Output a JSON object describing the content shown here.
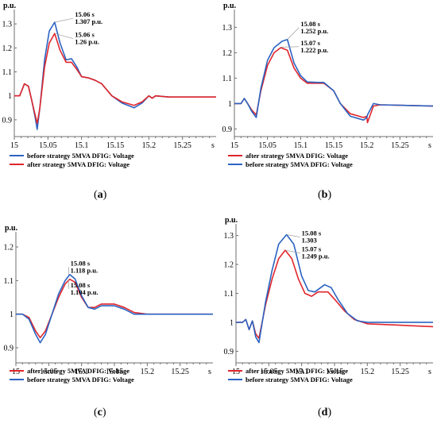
{
  "colors": {
    "blue": "#2b63c2",
    "red": "#e0262c",
    "axis": "#6f6f6f",
    "grid": "#cfcfcf"
  },
  "chart_data": [
    {
      "id": "a",
      "type": "line",
      "caption": "(a)",
      "caption_letter": "a",
      "ylabel": "p.u.",
      "xlabel": "s",
      "xlim": [
        15.0,
        15.3
      ],
      "ylim": [
        0.83,
        1.36
      ],
      "xticks": [
        15,
        15.05,
        15.1,
        15.15,
        15.2,
        15.25
      ],
      "xtick_labels": [
        "15",
        "15.05",
        "15.1",
        "15.15",
        "15.2",
        "15.25"
      ],
      "yticks": [
        0.9,
        1,
        1.1,
        1.2,
        1.3
      ],
      "ytick_labels": [
        "0.9",
        "1",
        "1.1",
        "1.2",
        "1.3"
      ],
      "series": [
        {
          "name": "before strategy 5MVA DFIG: Voltage",
          "color": "#2b63c2",
          "points": [
            [
              15.0,
              1.0
            ],
            [
              15.008,
              1.0
            ],
            [
              15.015,
              1.05
            ],
            [
              15.021,
              1.04
            ],
            [
              15.026,
              0.98
            ],
            [
              15.031,
              0.91
            ],
            [
              15.034,
              0.86
            ],
            [
              15.038,
              0.95
            ],
            [
              15.045,
              1.15
            ],
            [
              15.052,
              1.27
            ],
            [
              15.06,
              1.307
            ],
            [
              15.068,
              1.22
            ],
            [
              15.077,
              1.15
            ],
            [
              15.085,
              1.155
            ],
            [
              15.093,
              1.12
            ],
            [
              15.1,
              1.08
            ],
            [
              15.11,
              1.075
            ],
            [
              15.12,
              1.065
            ],
            [
              15.13,
              1.05
            ],
            [
              15.145,
              1.0
            ],
            [
              15.16,
              0.97
            ],
            [
              15.178,
              0.95
            ],
            [
              15.19,
              0.97
            ],
            [
              15.2,
              1.0
            ],
            [
              15.205,
              0.99
            ],
            [
              15.21,
              1.0
            ],
            [
              15.23,
              0.995
            ],
            [
              15.3,
              0.995
            ]
          ]
        },
        {
          "name": "after strategy 5MVA DFIG: Voltage",
          "color": "#e0262c",
          "points": [
            [
              15.0,
              1.0
            ],
            [
              15.008,
              1.0
            ],
            [
              15.015,
              1.05
            ],
            [
              15.021,
              1.04
            ],
            [
              15.026,
              0.98
            ],
            [
              15.031,
              0.92
            ],
            [
              15.034,
              0.885
            ],
            [
              15.038,
              0.95
            ],
            [
              15.045,
              1.12
            ],
            [
              15.052,
              1.22
            ],
            [
              15.06,
              1.26
            ],
            [
              15.068,
              1.19
            ],
            [
              15.077,
              1.14
            ],
            [
              15.085,
              1.14
            ],
            [
              15.093,
              1.11
            ],
            [
              15.1,
              1.08
            ],
            [
              15.11,
              1.075
            ],
            [
              15.12,
              1.065
            ],
            [
              15.13,
              1.05
            ],
            [
              15.145,
              1.0
            ],
            [
              15.16,
              0.975
            ],
            [
              15.178,
              0.96
            ],
            [
              15.19,
              0.975
            ],
            [
              15.2,
              1.0
            ],
            [
              15.205,
              0.99
            ],
            [
              15.21,
              1.0
            ],
            [
              15.23,
              0.995
            ],
            [
              15.3,
              0.995
            ]
          ]
        }
      ],
      "annotations": [
        {
          "lines": [
            "15.06 s",
            "1.307 p.u."
          ],
          "x": 15.06,
          "y": 1.307,
          "tx": 15.09,
          "ty": 1.33
        },
        {
          "lines": [
            "15.06 s",
            "1.26 p.u."
          ],
          "x": 15.06,
          "y": 1.26,
          "tx": 15.09,
          "ty": 1.245
        }
      ],
      "legend": [
        {
          "label": "before strategy 5MVA DFIG: Voltage",
          "color": "#2b63c2"
        },
        {
          "label": "after strategy 5MVA DFIG: Voltage",
          "color": "#e0262c"
        }
      ]
    },
    {
      "id": "b",
      "type": "line",
      "caption": "(b)",
      "caption_letter": "b",
      "ylabel": "p.u.",
      "xlabel": "s",
      "xlim": [
        15.0,
        15.3
      ],
      "ylim": [
        0.87,
        1.37
      ],
      "xticks": [
        15,
        15.05,
        15.1,
        15.15,
        15.2,
        15.25
      ],
      "xtick_labels": [
        "15",
        "15.05",
        "15.1",
        "15.15",
        "15.2",
        "15.25"
      ],
      "yticks": [
        0.9,
        1,
        1.1,
        1.2,
        1.3
      ],
      "ytick_labels": [
        "0.9",
        "1",
        "1.1",
        "1.2",
        "1.3"
      ],
      "series": [
        {
          "name": "after strategy 5MVA DFIG: Voltage",
          "color": "#e0262c",
          "points": [
            [
              15.0,
              1.0
            ],
            [
              15.01,
              1.0
            ],
            [
              15.015,
              1.02
            ],
            [
              15.02,
              1.0
            ],
            [
              15.026,
              0.975
            ],
            [
              15.033,
              0.955
            ],
            [
              15.04,
              1.05
            ],
            [
              15.05,
              1.15
            ],
            [
              15.06,
              1.2
            ],
            [
              15.07,
              1.22
            ],
            [
              15.08,
              1.21
            ],
            [
              15.09,
              1.14
            ],
            [
              15.1,
              1.1
            ],
            [
              15.11,
              1.08
            ],
            [
              15.125,
              1.08
            ],
            [
              15.135,
              1.08
            ],
            [
              15.15,
              1.05
            ],
            [
              15.16,
              1.0
            ],
            [
              15.175,
              0.96
            ],
            [
              15.195,
              0.945
            ],
            [
              15.2,
              0.95
            ],
            [
              15.201,
              0.925
            ],
            [
              15.21,
              0.99
            ],
            [
              15.22,
              0.995
            ],
            [
              15.3,
              0.99
            ]
          ]
        },
        {
          "name": "before strategy 5MVA DFIG: Voltage",
          "color": "#2b63c2",
          "points": [
            [
              15.0,
              1.0
            ],
            [
              15.01,
              1.0
            ],
            [
              15.015,
              1.02
            ],
            [
              15.02,
              1.0
            ],
            [
              15.026,
              0.97
            ],
            [
              15.033,
              0.945
            ],
            [
              15.04,
              1.06
            ],
            [
              15.05,
              1.17
            ],
            [
              15.06,
              1.22
            ],
            [
              15.072,
              1.245
            ],
            [
              15.08,
              1.252
            ],
            [
              15.09,
              1.16
            ],
            [
              15.1,
              1.11
            ],
            [
              15.11,
              1.085
            ],
            [
              15.125,
              1.083
            ],
            [
              15.135,
              1.083
            ],
            [
              15.15,
              1.05
            ],
            [
              15.16,
              1.0
            ],
            [
              15.175,
              0.95
            ],
            [
              15.195,
              0.935
            ],
            [
              15.2,
              0.945
            ],
            [
              15.201,
              0.955
            ],
            [
              15.21,
              1.0
            ],
            [
              15.22,
              0.995
            ],
            [
              15.3,
              0.99
            ]
          ]
        }
      ],
      "annotations": [
        {
          "lines": [
            "15.08 s",
            "1.252 p.u."
          ],
          "x": 15.08,
          "y": 1.252,
          "tx": 15.1,
          "ty": 1.305
        },
        {
          "lines": [
            "15.07 s",
            "1.222 p.u."
          ],
          "x": 15.07,
          "y": 1.222,
          "tx": 15.1,
          "ty": 1.23
        }
      ],
      "legend": [
        {
          "label": "after strategy 5MVA DFIG: Voltage",
          "color": "#e0262c"
        },
        {
          "label": "before strategy 5MVA DFIG: Voltage",
          "color": "#2b63c2"
        }
      ]
    },
    {
      "id": "c",
      "type": "line",
      "caption": "(c)",
      "caption_letter": "c",
      "ylabel": "p.u.",
      "xlabel": "s",
      "xlim": [
        15.0,
        15.3
      ],
      "ylim": [
        0.855,
        1.245
      ],
      "xticks": [
        15,
        15.05,
        15.1,
        15.15,
        15.2,
        15.25
      ],
      "xtick_labels": [
        "15",
        "15.05",
        "15.1",
        "15.15",
        "15.2",
        "15.25"
      ],
      "yticks": [
        0.9,
        1,
        1.1,
        1.2
      ],
      "ytick_labels": [
        "0.9",
        "1",
        "1.1",
        "1.2"
      ],
      "series": [
        {
          "name": "after strategy 5MVA DFIG: Voltage",
          "color": "#e0262c",
          "points": [
            [
              15.0,
              1.0
            ],
            [
              15.01,
              1.0
            ],
            [
              15.02,
              0.99
            ],
            [
              15.03,
              0.95
            ],
            [
              15.037,
              0.93
            ],
            [
              15.045,
              0.95
            ],
            [
              15.055,
              1.0
            ],
            [
              15.065,
              1.05
            ],
            [
              15.075,
              1.09
            ],
            [
              15.082,
              1.104
            ],
            [
              15.09,
              1.095
            ],
            [
              15.1,
              1.05
            ],
            [
              15.11,
              1.02
            ],
            [
              15.12,
              1.02
            ],
            [
              15.13,
              1.03
            ],
            [
              15.15,
              1.03
            ],
            [
              15.165,
              1.02
            ],
            [
              15.18,
              1.005
            ],
            [
              15.2,
              1.0
            ],
            [
              15.3,
              1.0
            ]
          ]
        },
        {
          "name": "before strategy 5MVA DFIG: Voltage",
          "color": "#2b63c2",
          "points": [
            [
              15.0,
              1.0
            ],
            [
              15.01,
              1.0
            ],
            [
              15.02,
              0.985
            ],
            [
              15.03,
              0.94
            ],
            [
              15.037,
              0.915
            ],
            [
              15.045,
              0.94
            ],
            [
              15.055,
              1.0
            ],
            [
              15.065,
              1.06
            ],
            [
              15.075,
              1.1
            ],
            [
              15.082,
              1.118
            ],
            [
              15.09,
              1.105
            ],
            [
              15.1,
              1.055
            ],
            [
              15.11,
              1.02
            ],
            [
              15.12,
              1.015
            ],
            [
              15.13,
              1.025
            ],
            [
              15.15,
              1.025
            ],
            [
              15.165,
              1.015
            ],
            [
              15.18,
              1.0
            ],
            [
              15.2,
              1.0
            ],
            [
              15.3,
              1.0
            ]
          ]
        }
      ],
      "annotations": [
        {
          "lines": [
            "15.08 s",
            "1.118 p.u."
          ],
          "x": 15.08,
          "y": 1.118,
          "tx": 15.083,
          "ty": 1.145
        },
        {
          "lines": [
            "15.08 s",
            "1.104 p.u."
          ],
          "x": 15.08,
          "y": 1.104,
          "tx": 15.083,
          "ty": 1.08
        }
      ],
      "legend": [
        {
          "label": "after strategy 5MVA DFIG: Voltage",
          "color": "#e0262c"
        },
        {
          "label": "before strategy 5MVA DFIG: Voltage",
          "color": "#2b63c2"
        }
      ]
    },
    {
      "id": "d",
      "type": "line",
      "caption": "(d)",
      "caption_letter": "d",
      "ylabel": "p.u.",
      "xlabel": "s",
      "xlim": [
        15.0,
        15.3
      ],
      "ylim": [
        0.86,
        1.34
      ],
      "xticks": [
        15,
        15.05,
        15.1,
        15.15,
        15.2,
        15.25
      ],
      "xtick_labels": [
        "15",
        "15.05",
        "15.1",
        "15.15",
        "15.2",
        "15.25"
      ],
      "yticks": [
        0.9,
        1,
        1.1,
        1.2,
        1.3
      ],
      "ytick_labels": [
        "0.9",
        "1",
        "1.1",
        "1.2",
        "1.3"
      ],
      "series": [
        {
          "name": "after strategy 5MVA DFIG: Voltage",
          "color": "#e0262c",
          "points": [
            [
              15.0,
              1.0
            ],
            [
              15.01,
              1.0
            ],
            [
              15.015,
              1.01
            ],
            [
              15.02,
              0.975
            ],
            [
              15.025,
              1.005
            ],
            [
              15.03,
              0.96
            ],
            [
              15.035,
              0.945
            ],
            [
              15.045,
              1.06
            ],
            [
              15.055,
              1.15
            ],
            [
              15.065,
              1.22
            ],
            [
              15.075,
              1.249
            ],
            [
              15.085,
              1.22
            ],
            [
              15.095,
              1.15
            ],
            [
              15.105,
              1.1
            ],
            [
              15.115,
              1.09
            ],
            [
              15.125,
              1.105
            ],
            [
              15.14,
              1.105
            ],
            [
              15.15,
              1.08
            ],
            [
              15.165,
              1.04
            ],
            [
              15.18,
              1.01
            ],
            [
              15.2,
              0.995
            ],
            [
              15.25,
              0.99
            ],
            [
              15.3,
              0.985
            ]
          ]
        },
        {
          "name": "before strategy 5MVA DFIG: Voltage",
          "color": "#2b63c2",
          "points": [
            [
              15.0,
              1.0
            ],
            [
              15.01,
              1.0
            ],
            [
              15.015,
              1.01
            ],
            [
              15.02,
              0.975
            ],
            [
              15.025,
              1.005
            ],
            [
              15.03,
              0.95
            ],
            [
              15.035,
              0.93
            ],
            [
              15.045,
              1.07
            ],
            [
              15.055,
              1.18
            ],
            [
              15.065,
              1.27
            ],
            [
              15.077,
              1.303
            ],
            [
              15.088,
              1.27
            ],
            [
              15.1,
              1.16
            ],
            [
              15.11,
              1.11
            ],
            [
              15.12,
              1.105
            ],
            [
              15.135,
              1.13
            ],
            [
              15.145,
              1.12
            ],
            [
              15.155,
              1.08
            ],
            [
              15.17,
              1.03
            ],
            [
              15.185,
              1.005
            ],
            [
              15.2,
              1.0
            ],
            [
              15.3,
              1.0
            ]
          ]
        }
      ],
      "annotations": [
        {
          "lines": [
            "15.08 s",
            "1.303"
          ],
          "x": 15.077,
          "y": 1.303,
          "tx": 15.1,
          "ty": 1.3
        },
        {
          "lines": [
            "15.07 s",
            "1.249 p.u."
          ],
          "x": 15.075,
          "y": 1.249,
          "tx": 15.1,
          "ty": 1.245
        }
      ],
      "extra_ylabel_pos": "left-of-1.3",
      "legend": [
        {
          "label": "after strategy 5MVA DFIG: Voltage",
          "color": "#e0262c"
        },
        {
          "label": "before strategy 5MVA DFIG: Voltage",
          "color": "#2b63c2"
        }
      ]
    }
  ]
}
